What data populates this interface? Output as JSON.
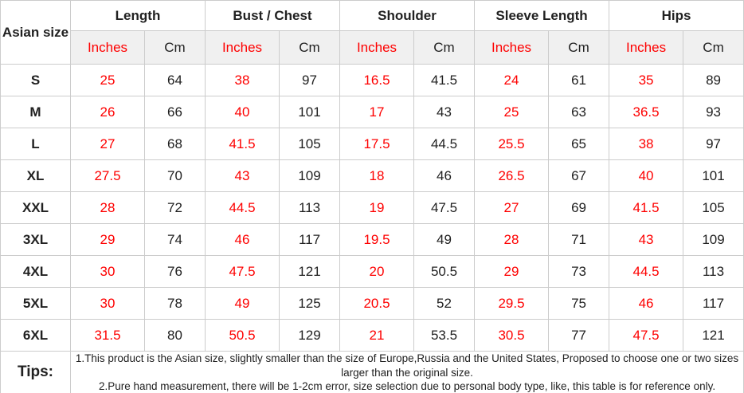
{
  "colors": {
    "inches_text": "#fe0000",
    "dark_text": "#212121",
    "border": "#cccccc",
    "unit_header_bg": "#f0f0f0"
  },
  "table": {
    "corner_label": "Asian size",
    "groups": [
      {
        "label": "Length"
      },
      {
        "label": "Bust / Chest"
      },
      {
        "label": "Shoulder"
      },
      {
        "label": "Sleeve Length"
      },
      {
        "label": "Hips"
      }
    ],
    "unit_headers": {
      "inches": "Inches",
      "cm": "Cm"
    },
    "rows": [
      {
        "size": "S",
        "values": [
          25,
          64,
          38,
          97,
          16.5,
          41.5,
          24,
          61,
          35,
          89
        ]
      },
      {
        "size": "M",
        "values": [
          26,
          66,
          40,
          101,
          17,
          43,
          25,
          63,
          36.5,
          93
        ]
      },
      {
        "size": "L",
        "values": [
          27,
          68,
          41.5,
          105,
          17.5,
          44.5,
          25.5,
          65,
          38,
          97
        ]
      },
      {
        "size": "XL",
        "values": [
          27.5,
          70,
          43,
          109,
          18,
          46,
          26.5,
          67,
          40,
          101
        ]
      },
      {
        "size": "XXL",
        "values": [
          28,
          72,
          44.5,
          113,
          19,
          47.5,
          27,
          69,
          41.5,
          105
        ]
      },
      {
        "size": "3XL",
        "values": [
          29,
          74,
          46,
          117,
          19.5,
          49,
          28,
          71,
          43,
          109
        ]
      },
      {
        "size": "4XL",
        "values": [
          30,
          76,
          47.5,
          121,
          20,
          50.5,
          29,
          73,
          44.5,
          113
        ]
      },
      {
        "size": "5XL",
        "values": [
          30,
          78,
          49,
          125,
          20.5,
          52,
          29.5,
          75,
          46,
          117
        ]
      },
      {
        "size": "6XL",
        "values": [
          31.5,
          80,
          50.5,
          129,
          21,
          53.5,
          30.5,
          77,
          47.5,
          121
        ]
      }
    ],
    "tips": {
      "label": "Tips:",
      "lines": [
        "1.This product is the Asian size, slightly smaller than the size of Europe,Russia and the United States, Proposed to choose one or two sizes larger than the original size.",
        "2.Pure hand measurement, there will be 1-2cm error, size selection due to personal body type, like, this table is for reference only."
      ]
    }
  }
}
